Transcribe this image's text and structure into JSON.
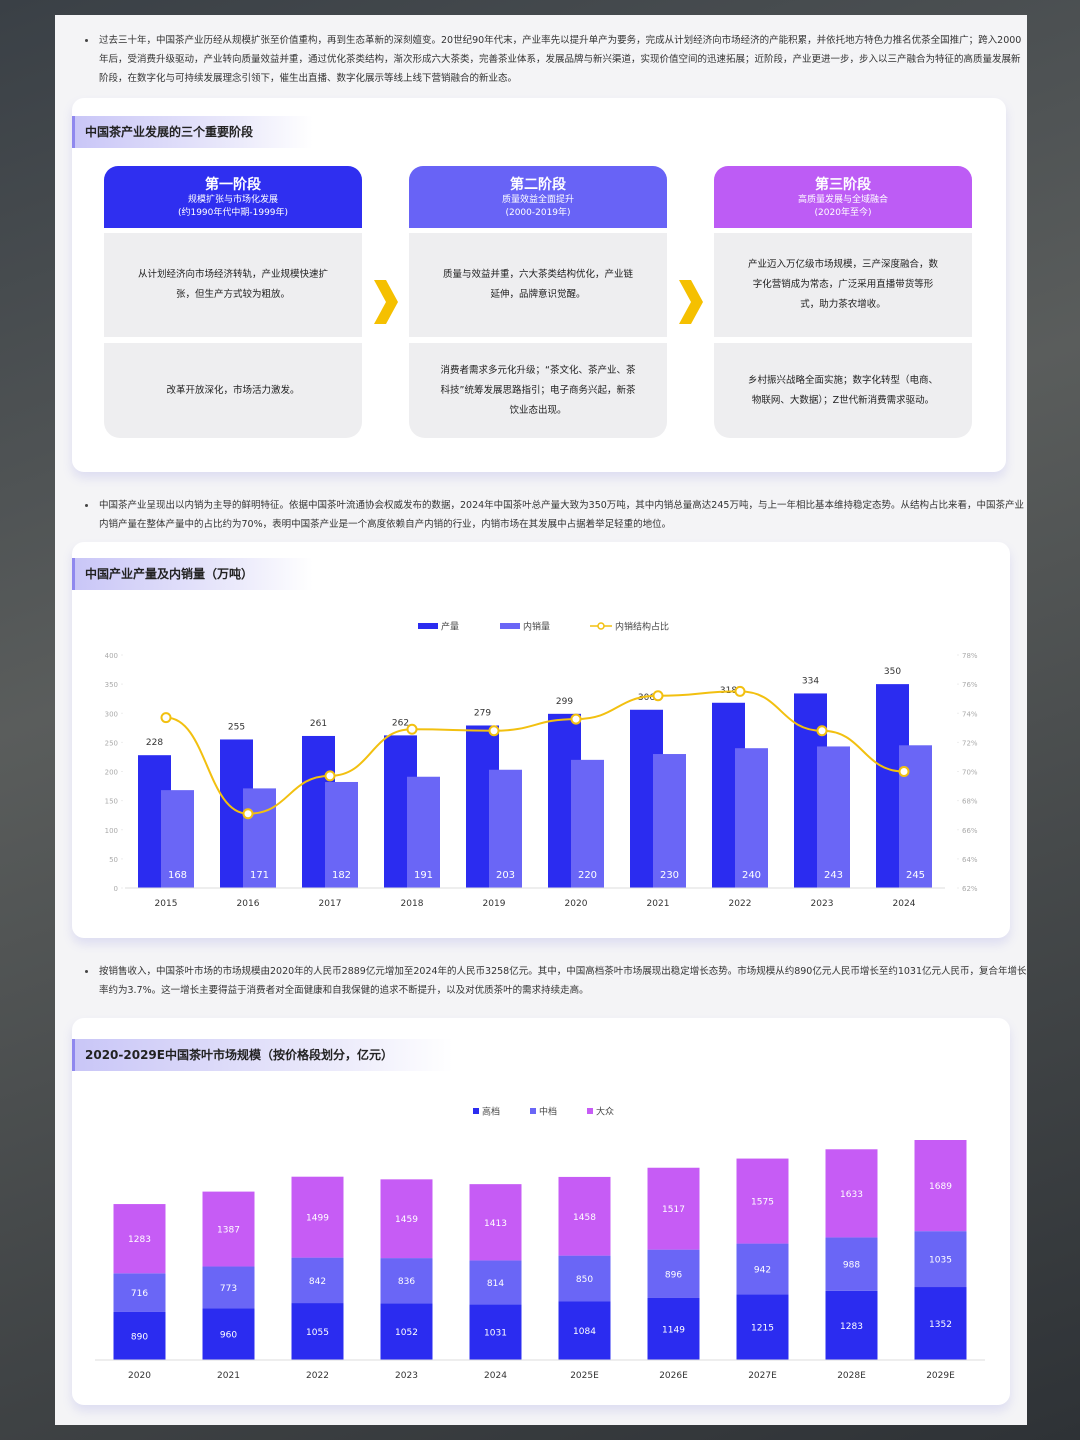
{
  "paragraphs": [
    "过去三十年，中国茶产业历经从规模扩张至价值重构，再到生态革新的深刻嬗变。20世纪90年代末，产业率先以提升单产为要务，完成从计划经济向市场经济的产能积累，并依托地方特色力推名优茶全国推广；跨入2000年后，受消费升级驱动，产业转向质量效益并重，通过优化茶类结构，渐次形成六大茶类，完善茶业体系，发展品牌与新兴渠道，实现价值空间的迅速拓展；近阶段，产业更进一步，步入以三产融合为特征的高质量发展新阶段，在数字化与可持续发展理念引领下，催生出直播、数字化展示等线上线下营销融合的新业态。",
    "中国茶产业呈现出以内销为主导的鲜明特征。依据中国茶叶流通协会权威发布的数据，2024年中国茶叶总产量大致为350万吨，其中内销总量高达245万吨，与上一年相比基本维持稳定态势。从结构占比来看，中国茶产业内销产量在整体产量中的占比约为70%，表明中国茶产业是一个高度依赖自产内销的行业，内销市场在其发展中占据着举足轻重的地位。",
    "按销售收入，中国茶叶市场的市场规模由2020年的人民币2889亿元增加至2024年的人民币3258亿元。其中，中国高档茶叶市场展现出稳定增长态势。市场规模从约890亿元人民币增长至约1031亿元人民币，复合年增长率约为3.7%。这一增长主要得益于消费者对全面健康和自我保健的追求不断提升，以及对优质茶叶的需求持续走高。"
  ],
  "stages": {
    "title": "中国茶产业发展的三个重要阶段",
    "items": [
      {
        "name": "第一阶段",
        "subtitle": "规模扩张与市场化发展",
        "period": "(约1990年代中期-1999年)",
        "description": "从计划经济向市场经济转轨，产业规模快速扩张，但生产方式较为粗放。",
        "drivers": "改革开放深化，市场活力激发。",
        "color": "#2f2ff0"
      },
      {
        "name": "第二阶段",
        "subtitle": "质量效益全面提升",
        "period": "(2000-2019年)",
        "description": "质量与效益并重，六大茶类结构优化，产业链延伸，品牌意识觉醒。",
        "drivers": "消费者需求多元化升级；“茶文化、茶产业、茶科技”统筹发展思路指引；电子商务兴起，新茶饮业态出现。",
        "color": "#6863f6"
      },
      {
        "name": "第三阶段",
        "subtitle": "高质量发展与全域融合",
        "period": "(2020年至今)",
        "description": "产业迈入万亿级市场规模，三产深度融合，数字化营销成为常态，广泛采用直播带货等形式，助力茶农增收。",
        "drivers": "乡村振兴战略全面实施；数字化转型（电商、物联网、大数据）；Z世代新消费需求驱动。",
        "color": "#bd5cf5"
      }
    ]
  },
  "chart_data": [
    {
      "type": "bar_line",
      "title": "中国产业产量及内销量（万吨）",
      "categories": [
        "2015",
        "2016",
        "2017",
        "2018",
        "2019",
        "2020",
        "2021",
        "2022",
        "2023",
        "2024"
      ],
      "series": [
        {
          "name": "产量",
          "color": "#2b2cf0",
          "values": [
            228,
            255,
            261,
            262,
            279,
            299,
            306,
            318,
            334,
            350
          ]
        },
        {
          "name": "内销量",
          "color": "#6a66f6",
          "values": [
            168,
            171,
            182,
            191,
            203,
            220,
            230,
            240,
            243,
            245
          ]
        },
        {
          "name": "内销结构占比",
          "color": "#f2c010",
          "axis": "y2",
          "type": "line",
          "values": [
            73.7,
            67.1,
            69.7,
            72.9,
            72.8,
            73.6,
            75.2,
            75.5,
            72.8,
            70.0
          ]
        }
      ],
      "ylim": [
        0,
        400
      ],
      "yticks": [
        0,
        50,
        100,
        150,
        200,
        250,
        300,
        350,
        400
      ],
      "y2lim": [
        62,
        78
      ],
      "y2ticks": [
        {
          "value": 62,
          "label": "62%"
        },
        {
          "value": 64,
          "label": "64%"
        },
        {
          "value": 66,
          "label": "66%"
        },
        {
          "value": 68,
          "label": "68%"
        },
        {
          "value": 70,
          "label": "70%"
        },
        {
          "value": 72,
          "label": "72%"
        },
        {
          "value": 74,
          "label": "74%"
        },
        {
          "value": 76,
          "label": "76%"
        },
        {
          "value": 78,
          "label": "78%"
        }
      ],
      "grid": false
    },
    {
      "type": "stacked_bar",
      "title": "2020-2029E中国茶叶市场规模（按价格段划分，亿元）",
      "categories": [
        "2020",
        "2021",
        "2022",
        "2023",
        "2024",
        "2025E",
        "2026E",
        "2027E",
        "2028E",
        "2029E"
      ],
      "series": [
        {
          "name": "高档",
          "color": "#2b2cf0",
          "values": [
            890,
            960,
            1055,
            1052,
            1031,
            1084,
            1149,
            1215,
            1283,
            1352
          ]
        },
        {
          "name": "中档",
          "color": "#6a66f6",
          "values": [
            716,
            773,
            842,
            836,
            814,
            850,
            896,
            942,
            988,
            1035
          ]
        },
        {
          "name": "大众",
          "color": "#c65cf5",
          "values": [
            1283,
            1387,
            1499,
            1459,
            1413,
            1458,
            1517,
            1575,
            1633,
            1689
          ]
        }
      ]
    }
  ]
}
